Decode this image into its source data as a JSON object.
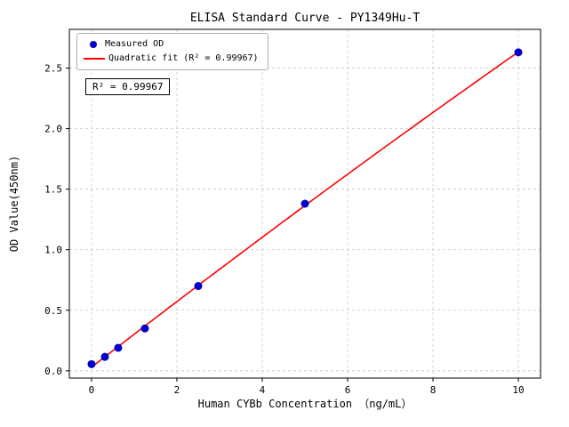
{
  "chart_data": {
    "type": "scatter",
    "title": "ELISA Standard Curve - PY1349Hu-T",
    "xlabel": "Human CYBb Concentration （ng/mL）",
    "ylabel": "OD Value(450nm)",
    "xlim": [
      -0.52,
      10.52
    ],
    "ylim": [
      -0.06,
      2.82
    ],
    "xticks": [
      0,
      2,
      4,
      6,
      8,
      10
    ],
    "yticks": [
      0.0,
      0.5,
      1.0,
      1.5,
      2.0,
      2.5
    ],
    "grid": true,
    "grid_color": "#c8c8c8",
    "background": "#ffffff",
    "legend_position": "upper-left",
    "series": [
      {
        "name": "Measured OD",
        "kind": "scatter",
        "color": "#0000cd",
        "x": [
          0,
          0.313,
          0.625,
          1.25,
          2.5,
          5,
          10
        ],
        "y": [
          0.055,
          0.115,
          0.19,
          0.35,
          0.7,
          1.38,
          2.63
        ]
      },
      {
        "name": "Quadratic fit (R² = 0.99967)",
        "kind": "line",
        "fit": "quadratic",
        "color": "#ff0000"
      }
    ],
    "annotation": "R² = 0.99967"
  }
}
